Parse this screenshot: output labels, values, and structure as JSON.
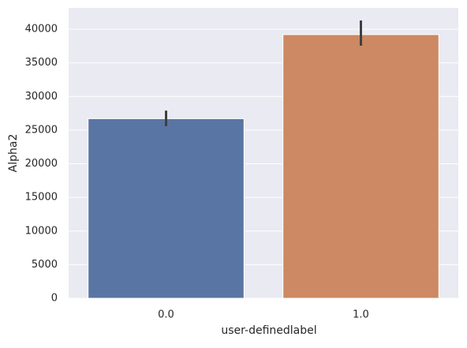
{
  "chart_data": {
    "type": "bar",
    "categories": [
      "0.0",
      "1.0"
    ],
    "values": [
      26700,
      39200
    ],
    "ci_low": [
      25600,
      37550
    ],
    "ci_high": [
      27900,
      41300
    ],
    "colors": [
      "#5975a4",
      "#cc8963"
    ],
    "xlabel": "user-definedlabel",
    "ylabel": "Alpha2",
    "ylim": [
      0,
      43170
    ],
    "yticks": [
      0,
      5000,
      10000,
      15000,
      20000,
      25000,
      30000,
      35000,
      40000
    ],
    "grid": true
  }
}
